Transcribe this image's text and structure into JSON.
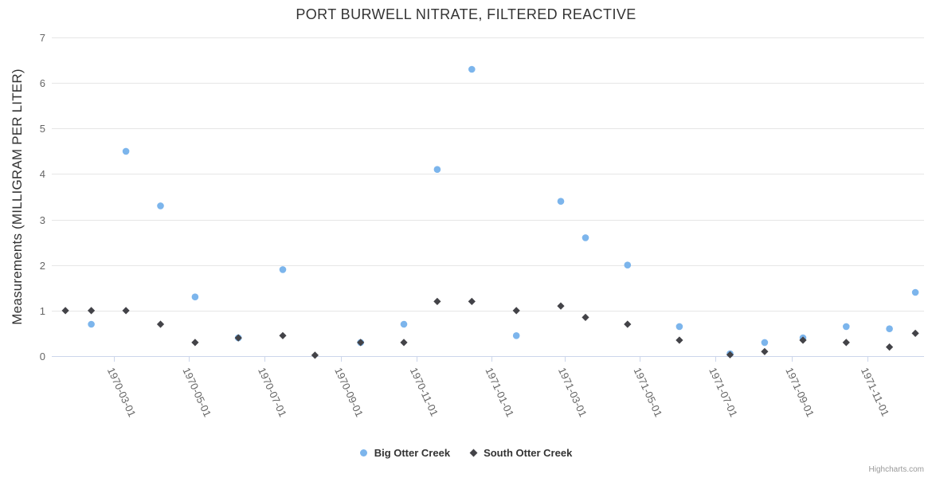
{
  "chart_data": {
    "type": "scatter",
    "title": "PORT BURWELL NITRATE, FILTERED REACTIVE",
    "ylabel": "Measurements (MILLIGRAM PER LITER)",
    "xlabel": "",
    "ylim": [
      0,
      7
    ],
    "yticks": [
      0,
      1,
      2,
      3,
      4,
      5,
      6,
      7
    ],
    "xticks": [
      "1970-03-01",
      "1970-05-01",
      "1970-07-01",
      "1970-09-01",
      "1970-11-01",
      "1971-01-01",
      "1971-03-01",
      "1971-05-01",
      "1971-07-01",
      "1971-09-01",
      "1971-11-01"
    ],
    "x_range": [
      "1970-01-10",
      "1971-12-17"
    ],
    "grid": "horizontal",
    "legend_position": "bottom-center",
    "credit": "Highcharts.com",
    "colors": {
      "grid": "#e6e6e6",
      "axis_line": "#ccd6eb",
      "tick_label": "#666666",
      "title": "#333333",
      "credit": "#999999"
    },
    "series": [
      {
        "name": "Big Otter Creek",
        "color": "#7cb5ec",
        "marker": "circle",
        "points": [
          [
            "1970-02-11",
            0.7
          ],
          [
            "1970-03-11",
            4.5
          ],
          [
            "1970-04-08",
            3.3
          ],
          [
            "1970-05-06",
            1.3
          ],
          [
            "1970-06-10",
            0.4
          ],
          [
            "1970-07-16",
            1.9
          ],
          [
            "1970-09-17",
            0.3
          ],
          [
            "1970-10-22",
            0.7
          ],
          [
            "1970-11-18",
            4.1
          ],
          [
            "1970-12-16",
            6.3
          ],
          [
            "1971-01-21",
            0.45
          ],
          [
            "1971-02-26",
            3.4
          ],
          [
            "1971-03-18",
            2.6
          ],
          [
            "1971-04-21",
            2.0
          ],
          [
            "1971-06-02",
            0.65
          ],
          [
            "1971-07-13",
            0.05
          ],
          [
            "1971-08-10",
            0.3
          ],
          [
            "1971-09-10",
            0.4
          ],
          [
            "1971-10-15",
            0.65
          ],
          [
            "1971-11-19",
            0.6
          ],
          [
            "1971-12-10",
            1.4
          ]
        ]
      },
      {
        "name": "South Otter Creek",
        "color": "#434348",
        "marker": "diamond",
        "points": [
          [
            "1970-01-21",
            1.0
          ],
          [
            "1970-02-11",
            1.0
          ],
          [
            "1970-03-11",
            1.0
          ],
          [
            "1970-04-08",
            0.7
          ],
          [
            "1970-05-06",
            0.3
          ],
          [
            "1970-06-10",
            0.4
          ],
          [
            "1970-07-16",
            0.45
          ],
          [
            "1970-08-11",
            0.02
          ],
          [
            "1970-09-17",
            0.3
          ],
          [
            "1970-10-22",
            0.3
          ],
          [
            "1970-11-18",
            1.2
          ],
          [
            "1970-12-16",
            1.2
          ],
          [
            "1971-01-21",
            1.0
          ],
          [
            "1971-02-26",
            1.1
          ],
          [
            "1971-03-18",
            0.85
          ],
          [
            "1971-04-21",
            0.7
          ],
          [
            "1971-06-02",
            0.35
          ],
          [
            "1971-07-13",
            0.03
          ],
          [
            "1971-08-10",
            0.1
          ],
          [
            "1971-09-10",
            0.35
          ],
          [
            "1971-10-15",
            0.3
          ],
          [
            "1971-11-19",
            0.2
          ],
          [
            "1971-12-10",
            0.5
          ]
        ]
      }
    ]
  }
}
